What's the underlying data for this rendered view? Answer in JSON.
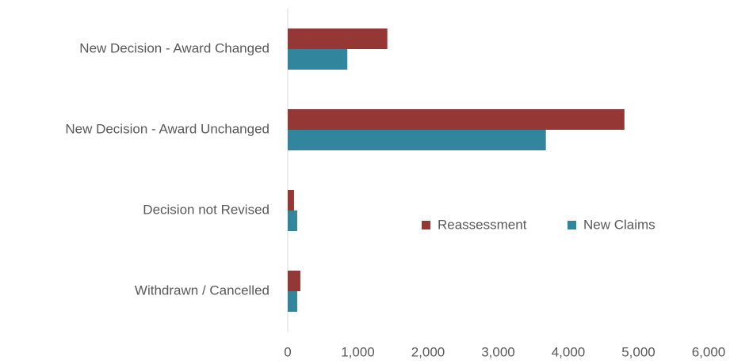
{
  "chart_data": {
    "type": "hbar",
    "categories": [
      "New Decision - Award Changed",
      "New Decision - Award Unchanged",
      "Decision not Revised",
      "Withdrawn / Cancelled"
    ],
    "series": [
      {
        "name": "Reassessment",
        "color": "#953735",
        "values": [
          1420,
          4800,
          90,
          180
        ]
      },
      {
        "name": "New Claims",
        "color": "#31859c",
        "values": [
          850,
          3680,
          135,
          135
        ]
      }
    ],
    "xlim": [
      0,
      6000
    ],
    "xticks": [
      0,
      {
        "value": 1000,
        "label": "1,000"
      },
      {
        "value": 2000,
        "label": "2,000"
      },
      {
        "value": 3000,
        "label": "3,000"
      },
      {
        "value": 4000,
        "label": "4,000"
      },
      {
        "value": 5000,
        "label": "5,000"
      },
      {
        "value": 6000,
        "label": "6,000"
      }
    ],
    "grid": false,
    "legend": "center"
  }
}
